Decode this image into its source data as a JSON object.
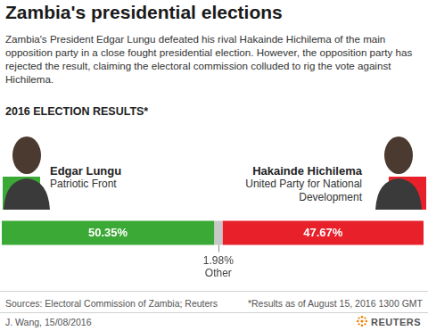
{
  "chart_data": {
    "type": "bar",
    "title": "Zambia's presidential elections",
    "subtitle": "Zambia's President Edgar Lungu defeated his rival Hakainde Hichilema of the main opposition party in a close fought presidential election. However, the opposition party has rejected the result, claiming the electoral commission colluded to rig the vote against Hichilema.",
    "section_title": "2016 ELECTION RESULTS*",
    "orientation": "horizontal",
    "stacked": true,
    "data_labels": true,
    "tick_labels": false,
    "grid": false,
    "categories": [
      null
    ],
    "xlim": [
      0,
      100
    ],
    "series": [
      {
        "name": "Edgar Lungu",
        "party": "Patriotic Front",
        "color": "#3aa935",
        "values": [
          50.35
        ],
        "value_labels": [
          "50.35%"
        ]
      },
      {
        "name": "Other",
        "color": "#c8c8c8",
        "values": [
          1.98
        ],
        "value_labels": [
          "1.98%"
        ]
      },
      {
        "name": "Hakainde Hichilema",
        "party": "United Party for National Development",
        "color": "#e8202a",
        "values": [
          47.67
        ],
        "value_labels": [
          "47.67%"
        ]
      }
    ],
    "sources": "Sources: Electoral Commission of Zambia; Reuters",
    "footnote": "*Results as of August 15, 2016 1300 GMT",
    "credit": "J. Wang, 15/08/2016",
    "logo": "REUTERS"
  }
}
